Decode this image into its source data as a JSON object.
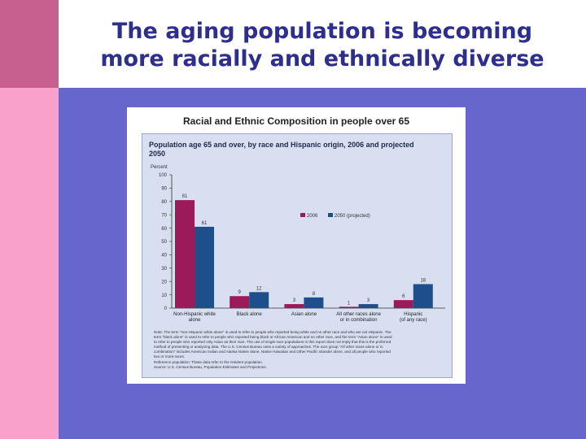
{
  "slide": {
    "title_line1": "The aging population is becoming",
    "title_line2": "more racially and ethnically diverse"
  },
  "figure": {
    "heading": "Racial and Ethnic Composition in people over 65"
  },
  "colors": {
    "series_2006": "#9b1a5a",
    "series_2050": "#1f4e8c",
    "panel": "#d8dff0",
    "slide_accent": "#6666cc"
  },
  "chart_data": {
    "type": "bar",
    "title": "Population age 65 and over, by race and Hispanic origin, 2006 and projected 2050",
    "title_line1": "Population age 65 and over, by race and Hispanic origin, 2006 and projected",
    "title_line2": "2050",
    "ylabel": "Percent",
    "ylim": [
      0,
      100
    ],
    "yticks": [
      0,
      10,
      20,
      30,
      40,
      50,
      60,
      70,
      80,
      90,
      100
    ],
    "categories": [
      [
        "Non-Hispanic white",
        "alone"
      ],
      [
        "Black alone"
      ],
      [
        "Asian alone"
      ],
      [
        "All other races alone",
        "or in combination"
      ],
      [
        "Hispanic",
        "(of any race)"
      ]
    ],
    "series": [
      {
        "name": "2006",
        "values": [
          81,
          9,
          3,
          1,
          6
        ]
      },
      {
        "name": "2050 (projected)",
        "values": [
          61,
          12,
          8,
          3,
          18
        ]
      }
    ],
    "legend_position": "top-right",
    "grid": false,
    "notes": [
      "Note: The term \"non-Hispanic white alone\" is used to refer to people who reported being white and no other race and who are not Hispanic. The",
      "term \"black alone\" is used to refer to people who reported being black or African American and no other race, and the term \"Asian alone\" is used",
      "to refer to people who reported only Asian as their race. The use of single-race populations in this report does not imply that this is the preferred",
      "method of presenting or analyzing data. The U.S. Census Bureau uses a variety of approaches. The race group \"All other races alone or in",
      "combination\" includes American Indian and Alaska Native alone, Native Hawaiian and Other Pacific Islander alone, and all people who reported",
      "two or more races.",
      "Reference population: These data refer to the resident population.",
      "Source: U.S. Census Bureau, Population Estimates and Projections."
    ]
  }
}
